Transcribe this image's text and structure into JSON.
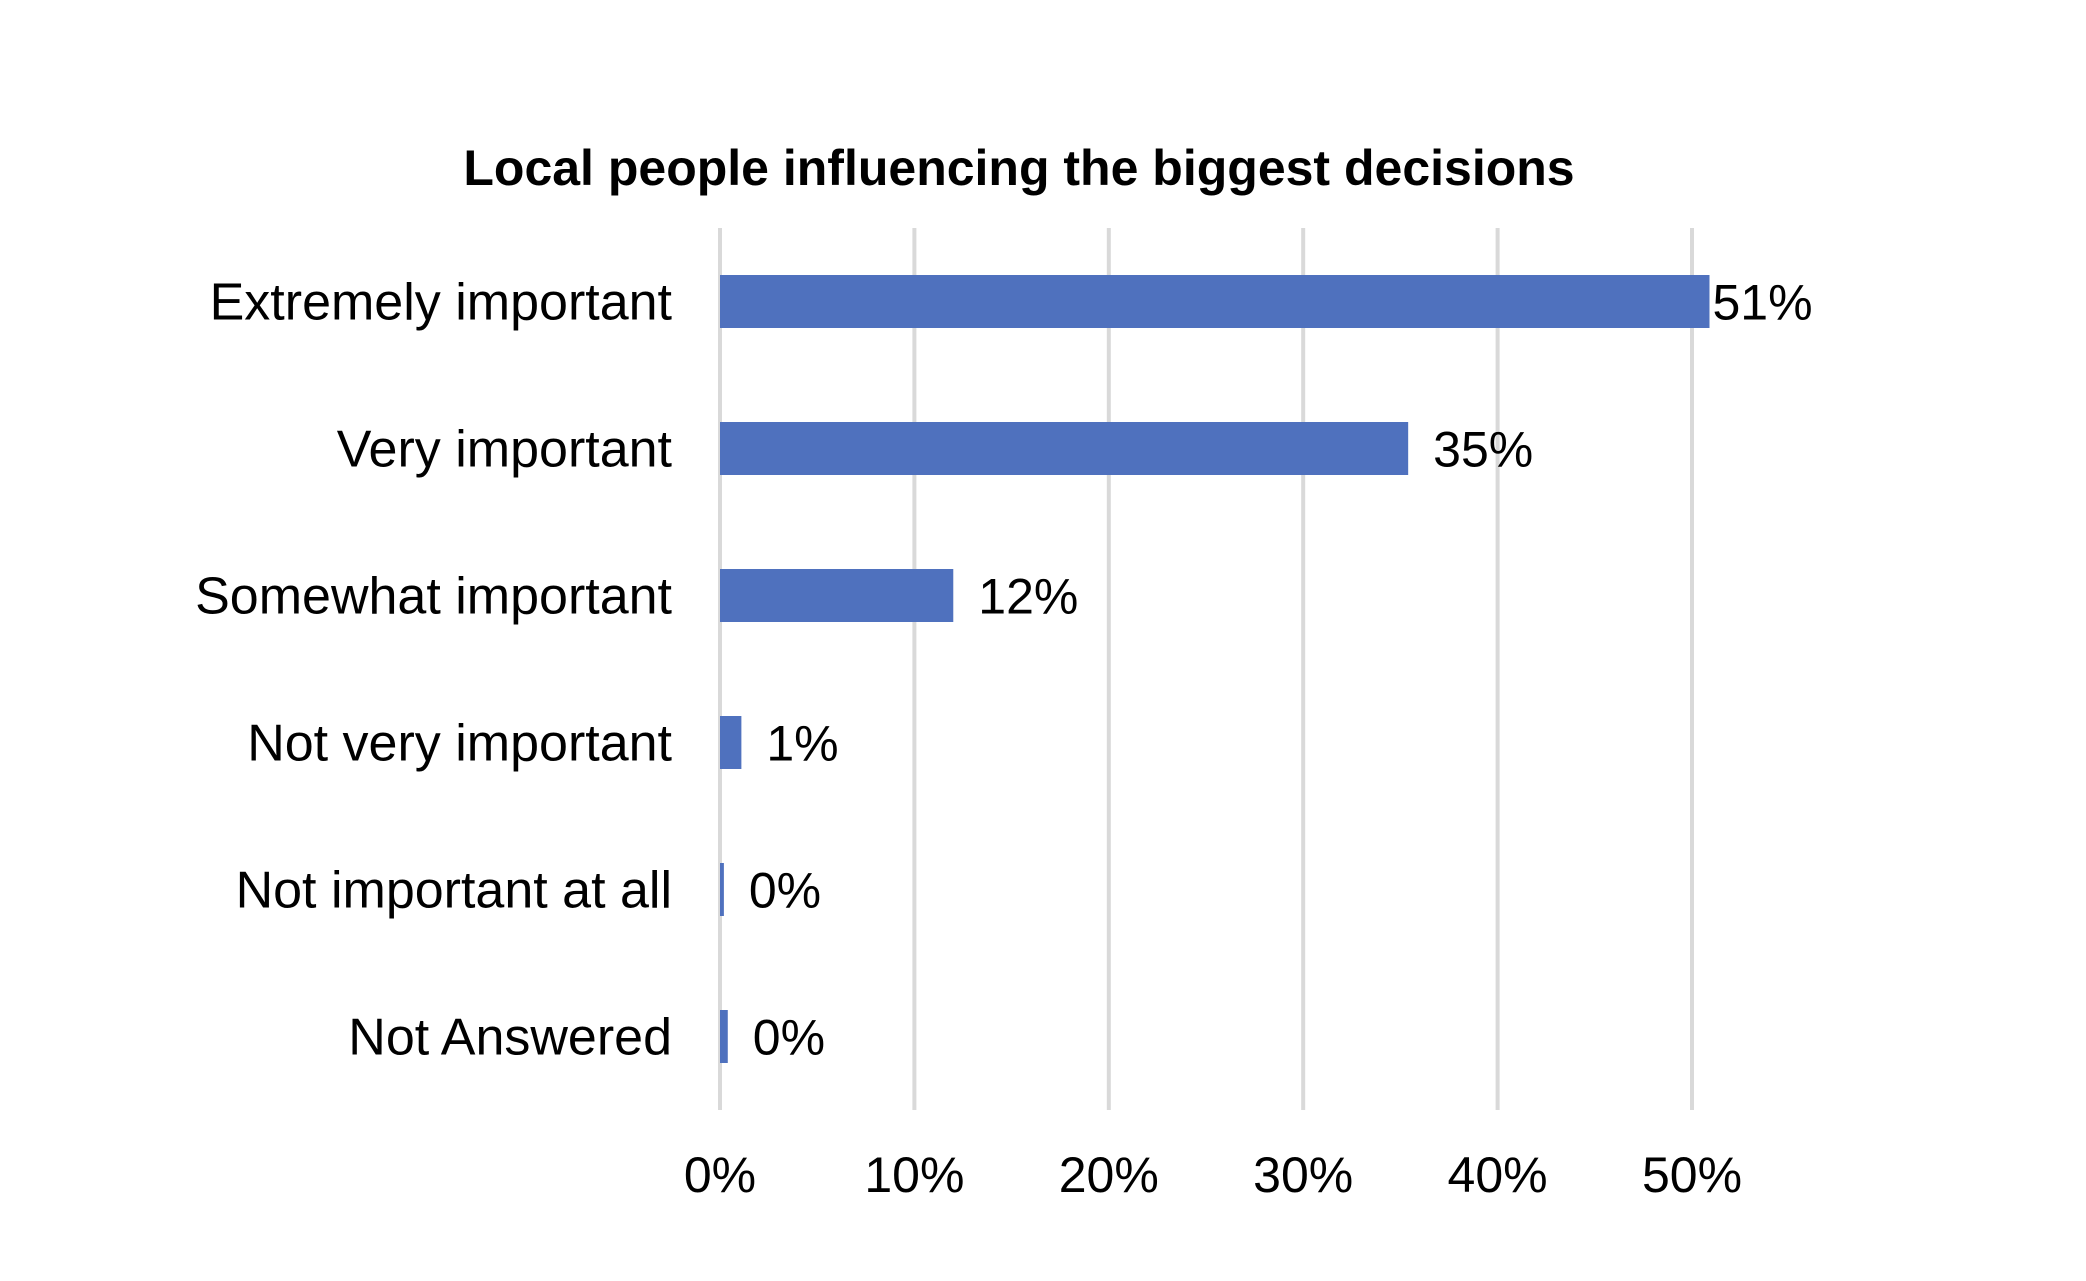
{
  "chart_data": {
    "type": "bar",
    "orientation": "horizontal",
    "title": "Local people influencing the biggest decisions",
    "categories": [
      "Extremely important",
      "Very important",
      "Somewhat important",
      "Not very important",
      "Not important at all",
      "Not Answered"
    ],
    "values": [
      50.9,
      35.4,
      12.0,
      1.1,
      0.2,
      0.4
    ],
    "data_labels": [
      "51%",
      "35%",
      "12%",
      "1%",
      "0%",
      "0%"
    ],
    "xlim": [
      0,
      50
    ],
    "x_ticks": [
      0,
      10,
      20,
      30,
      40,
      50
    ],
    "x_tick_labels": [
      "0%",
      "10%",
      "20%",
      "30%",
      "40%",
      "50%"
    ],
    "grid": "vertical",
    "legend": "none",
    "bar_color": "#4F71BE",
    "grid_color": "#D9D9D9"
  }
}
